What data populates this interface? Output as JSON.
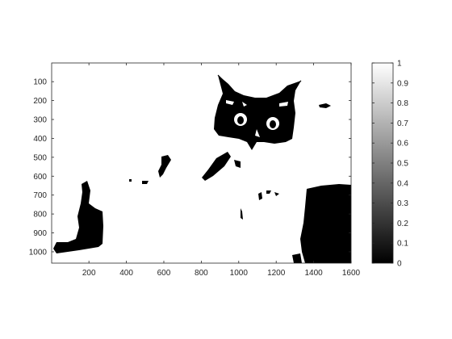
{
  "chart_data": {
    "type": "heatmap",
    "title": "",
    "xlabel": "",
    "ylabel": "",
    "xlim": [
      1,
      1600
    ],
    "ylim": [
      1,
      1060
    ],
    "y_direction": "reversed",
    "x_ticks": [
      200,
      400,
      600,
      800,
      1000,
      1200,
      1400,
      1600
    ],
    "y_ticks": [
      100,
      200,
      300,
      400,
      500,
      600,
      700,
      800,
      900,
      1000
    ],
    "colorbar": {
      "placement": "right",
      "colormap": "gray",
      "range": [
        0,
        1
      ],
      "ticks": [
        0,
        0.1,
        0.2,
        0.3,
        0.4,
        0.5,
        0.6,
        0.7,
        0.8,
        0.9,
        1
      ]
    },
    "image_description": "binary thresholded image of a black cat's face with white background",
    "colors": {
      "low": "#000000",
      "high": "#ffffff",
      "axis": "#262626"
    }
  }
}
